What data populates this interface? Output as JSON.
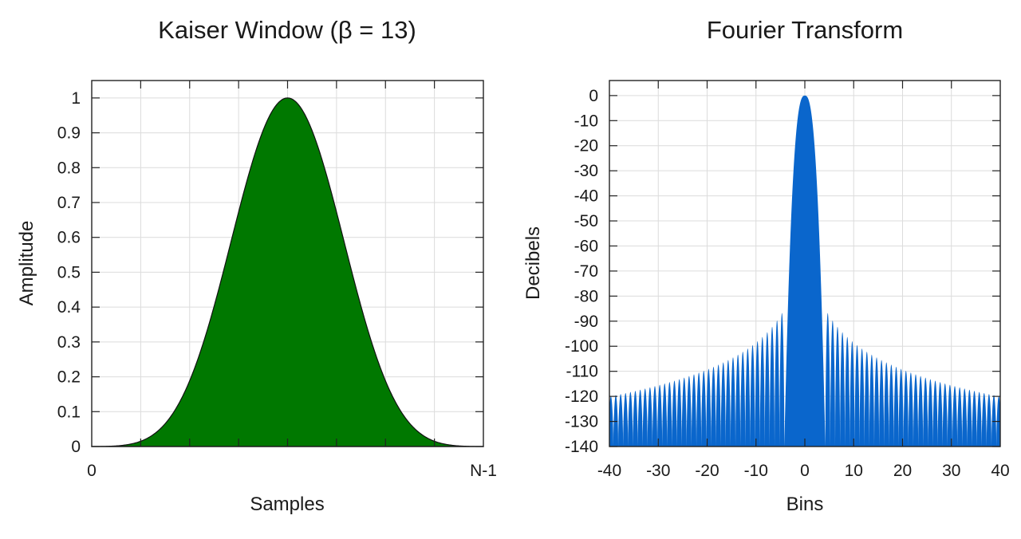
{
  "chart_data": [
    {
      "type": "area",
      "title": "Kaiser Window (β = 13)",
      "xlabel": "Samples",
      "ylabel": "Amplitude",
      "x_tick_labels": [
        "0",
        "N-1"
      ],
      "y_ticks": [
        0,
        0.1,
        0.2,
        0.3,
        0.4,
        0.5,
        0.6,
        0.7,
        0.8,
        0.9,
        1
      ],
      "y_tick_labels": [
        "0",
        "0.1",
        "0.2",
        "0.3",
        "0.4",
        "0.5",
        "0.6",
        "0.7",
        "0.8",
        "0.9",
        "1"
      ],
      "xlim": [
        0,
        1
      ],
      "ylim": [
        0,
        1.05
      ],
      "beta": 13,
      "fill_color": "#007800",
      "grid": true
    },
    {
      "type": "area",
      "title": "Fourier Transform",
      "xlabel": "Bins",
      "ylabel": "Decibels",
      "x_ticks": [
        -40,
        -30,
        -20,
        -10,
        0,
        10,
        20,
        30,
        40
      ],
      "x_tick_labels": [
        "-40",
        "-30",
        "-20",
        "-10",
        "0",
        "10",
        "20",
        "30",
        "40"
      ],
      "y_ticks": [
        0,
        -10,
        -20,
        -30,
        -40,
        -50,
        -60,
        -70,
        -80,
        -90,
        -100,
        -110,
        -120,
        -130,
        -140
      ],
      "y_tick_labels": [
        "0",
        "-10",
        "-20",
        "-30",
        "-40",
        "-50",
        "-60",
        "-70",
        "-80",
        "-90",
        "-100",
        "-110",
        "-120",
        "-130",
        "-140"
      ],
      "xlim": [
        -40,
        40
      ],
      "ylim": [
        -140,
        6
      ],
      "mainlobe_halfwidth_bins": 4.2,
      "first_sidelobe_db": -85,
      "sidelobe_db_at_40_bins": -120,
      "fill_color": "#0a66cc",
      "grid": true
    }
  ]
}
